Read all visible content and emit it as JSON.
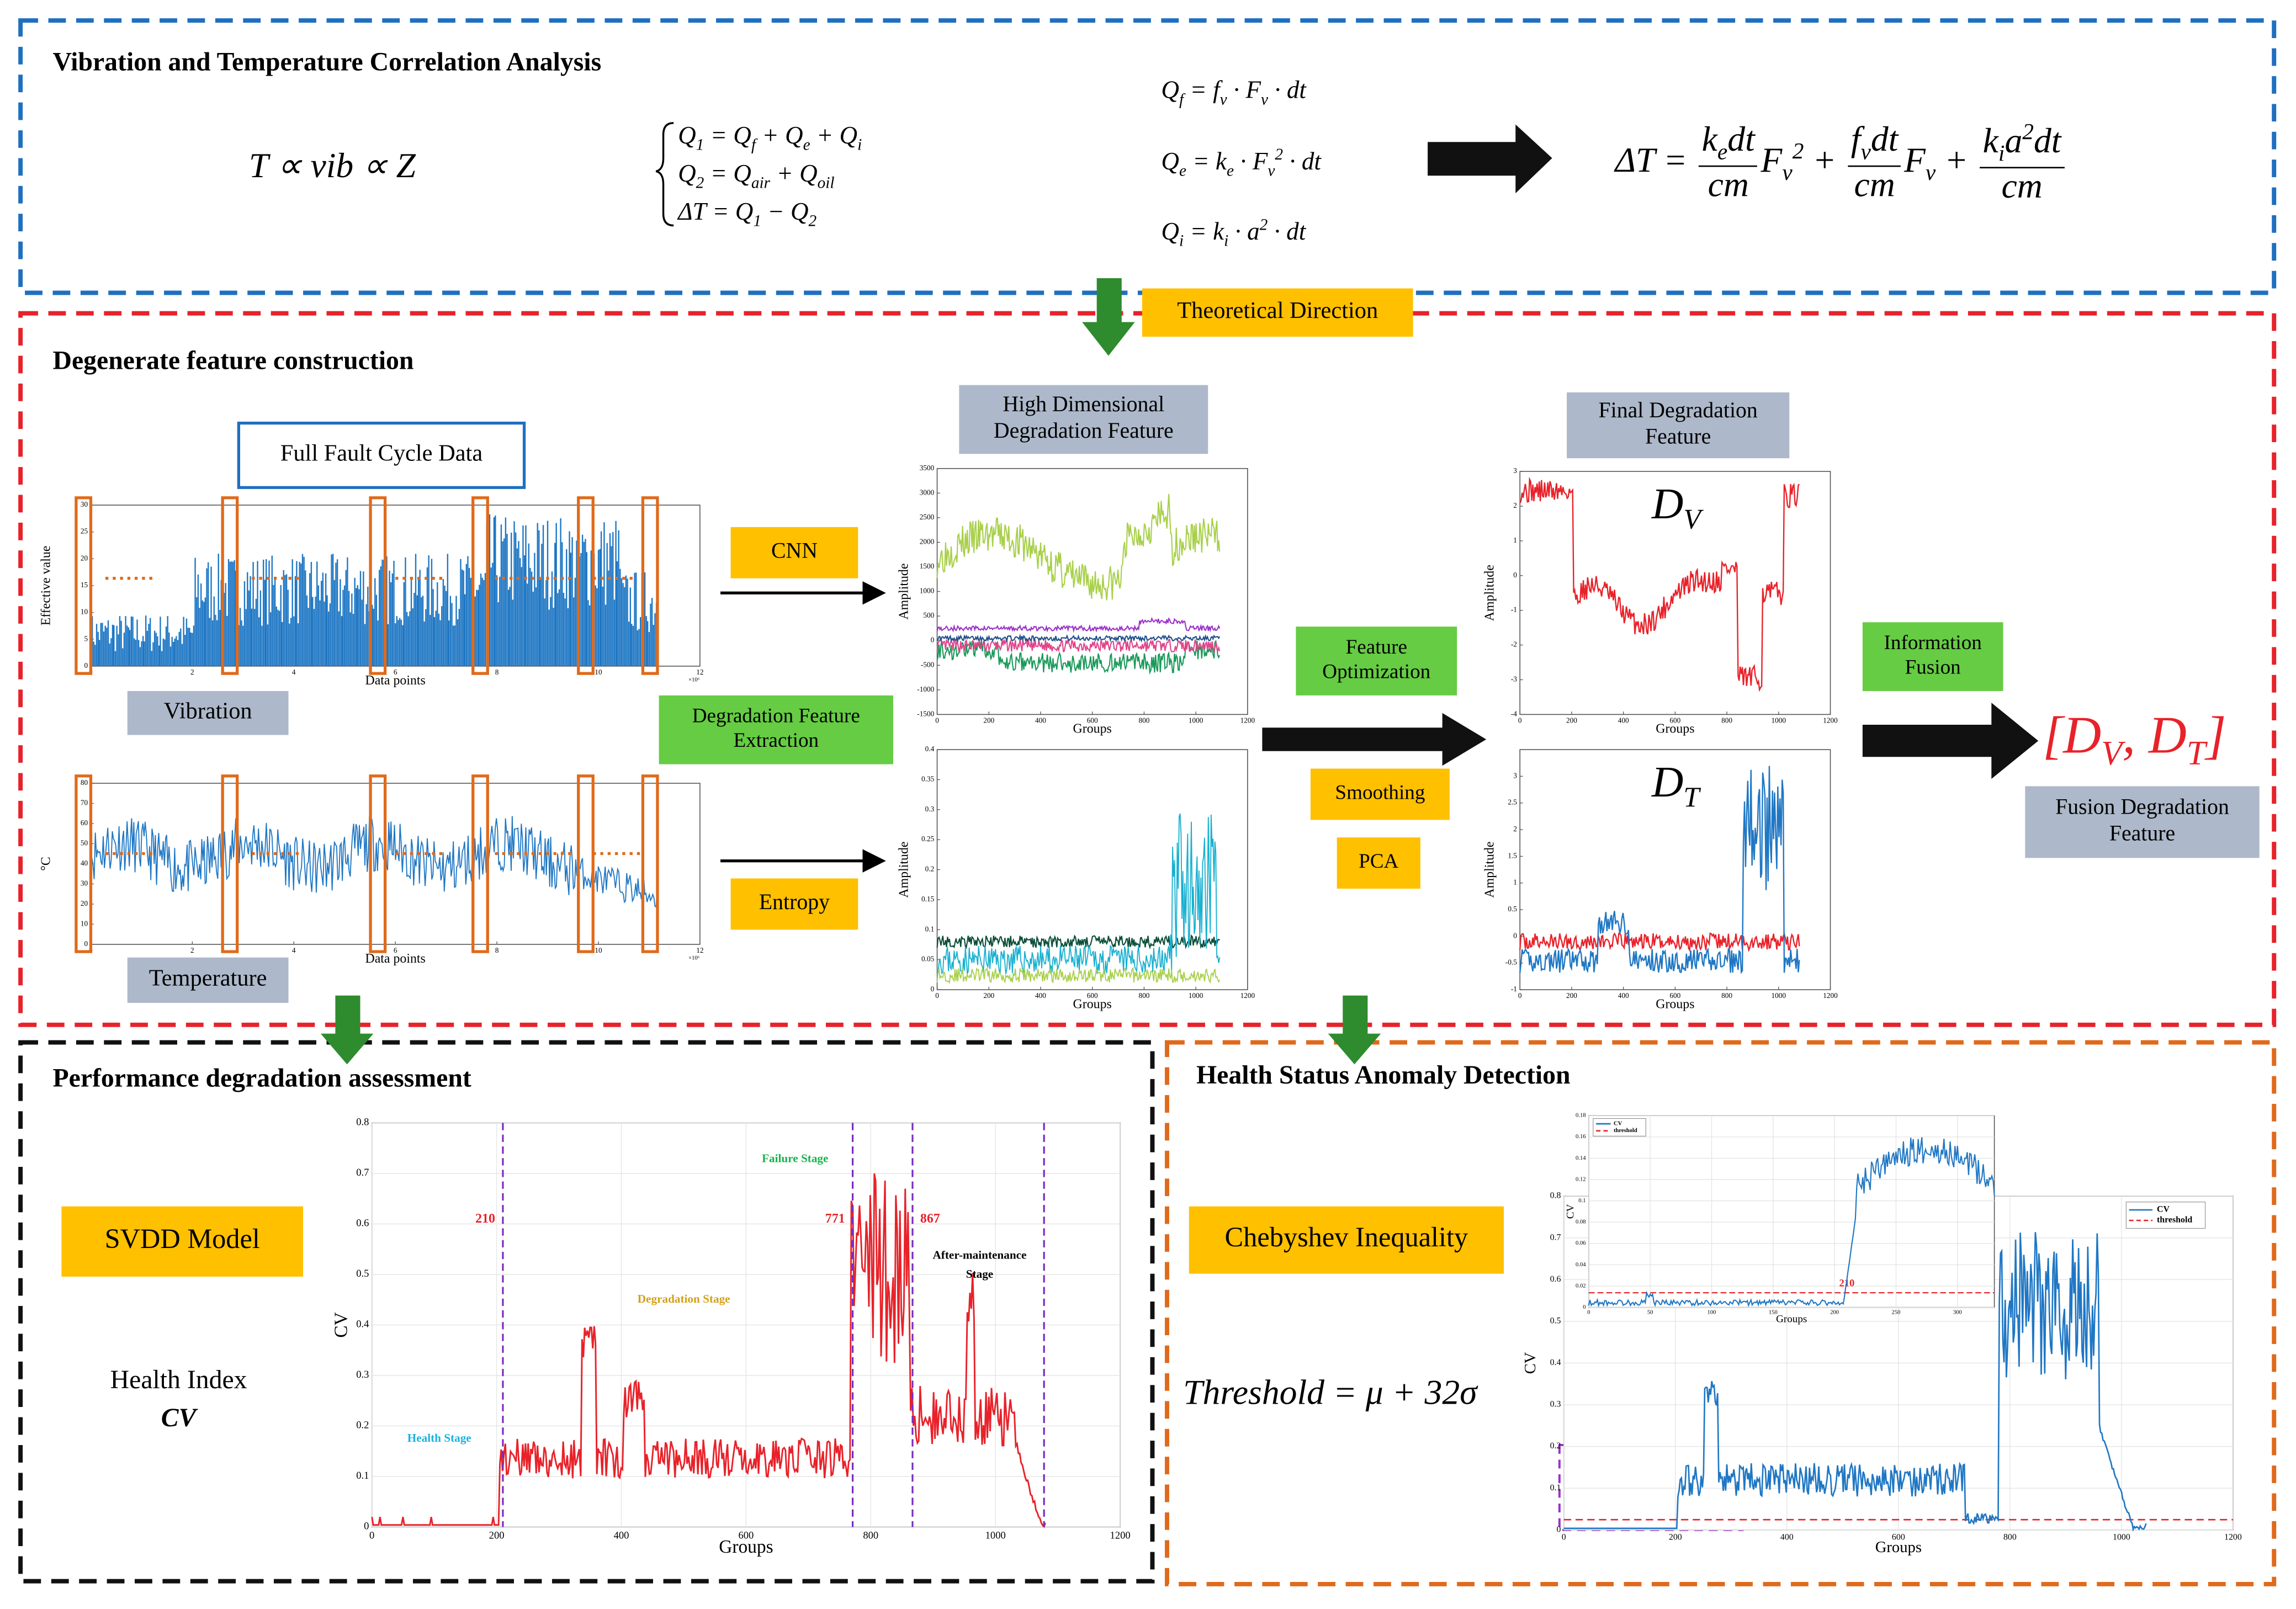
{
  "correlation": {
    "title": "Vibration and Temperature Correlation Analysis",
    "formulas": {
      "proportion": [
        "T ∝ vib ∝ Z"
      ],
      "system": [
        [
          "Q",
          {
            "sub": "1"
          },
          " = Q",
          {
            "sub": "f"
          },
          " + Q",
          {
            "sub": "e"
          },
          " + Q",
          {
            "sub": "i"
          }
        ],
        [
          "Q",
          {
            "sub": "2"
          },
          " = Q",
          {
            "sub": "air"
          },
          " + Q",
          {
            "sub": "oil"
          }
        ],
        [
          "ΔT = Q",
          {
            "sub": "1"
          },
          " − Q",
          {
            "sub": "2"
          }
        ]
      ],
      "heat": [
        [
          "Q",
          {
            "sub": "f"
          },
          " = f",
          {
            "sub": "v"
          },
          " · F",
          {
            "sub": "v"
          },
          " · dt"
        ],
        [
          "Q",
          {
            "sub": "e"
          },
          " = k",
          {
            "sub": "e"
          },
          " · F",
          {
            "sub": "v"
          },
          {
            "sup": "2"
          },
          " · dt"
        ],
        [
          "Q",
          {
            "sub": "i"
          },
          " = k",
          {
            "sub": "i"
          },
          " · a",
          {
            "sup": "2"
          },
          " · dt"
        ]
      ],
      "delta_t": [
        "ΔT = ",
        {
          "frac": [
            [
              "k",
              {
                "sub": "e"
              },
              "dt"
            ],
            [
              "cm"
            ]
          ]
        },
        "F",
        {
          "sub": "v"
        },
        {
          "sup": "2"
        },
        " + ",
        {
          "frac": [
            [
              "f",
              {
                "sub": "v"
              },
              "dt"
            ],
            [
              "cm"
            ]
          ]
        },
        "F",
        {
          "sub": "v"
        },
        " + ",
        {
          "frac": [
            [
              "k",
              {
                "sub": "i"
              },
              "a",
              {
                "sup": "2"
              },
              "dt"
            ],
            [
              "cm"
            ]
          ]
        }
      ]
    }
  },
  "theoretical_direction": "Theoretical Direction",
  "feature_construction": {
    "title": "Degenerate feature construction",
    "full_fault_cycle": "Full Fault Cycle Data",
    "vibration_label": "Vibration",
    "temperature_label": "Temperature",
    "cnn": "CNN",
    "entropy": "Entropy",
    "extraction": [
      "Degradation Feature",
      "Extraction"
    ],
    "high_dimensional": [
      "High Dimensional",
      "Degradation Feature"
    ],
    "optimization": [
      "Feature",
      "Optimization"
    ],
    "smoothing": "Smoothing",
    "pca": "PCA",
    "final_feature": [
      "Final Degradation",
      "Feature"
    ],
    "information_fusion": [
      "Information",
      "Fusion"
    ],
    "fusion_feature": [
      "Fusion Degradation",
      "Feature"
    ],
    "dv": [
      "D",
      {
        "sub": "V"
      }
    ],
    "dt": [
      "D",
      {
        "sub": "T"
      }
    ],
    "fusion_formula": [
      "[D",
      {
        "sub": "V"
      },
      ", D",
      {
        "sub": "T"
      },
      "]"
    ],
    "charts": {
      "vibration": {
        "xlim": [
          0,
          12
        ],
        "xticks": [
          0,
          2,
          4,
          6,
          8,
          10,
          12
        ],
        "ylim": [
          0,
          30
        ],
        "yticks": [
          0,
          5,
          10,
          15,
          20,
          25,
          30
        ],
        "x_label": "Data points",
        "y_label": "Effective value",
        "x_exponent": "×10⁶"
      },
      "temperature": {
        "xlim": [
          0,
          12
        ],
        "xticks": [
          0,
          2,
          4,
          6,
          8,
          10,
          12
        ],
        "ylim": [
          0,
          80
        ],
        "yticks": [
          0,
          10,
          20,
          30,
          40,
          50,
          60,
          70,
          80
        ],
        "x_label": "Data points",
        "y_label": "°C",
        "x_exponent": "×10⁶"
      },
      "hd_cnn": {
        "xlim": [
          0,
          1200
        ],
        "xticks": [
          0,
          200,
          400,
          600,
          800,
          1000,
          1200
        ],
        "ylim": [
          -1500,
          3500
        ],
        "yticks": [
          -1500,
          -1000,
          -500,
          0,
          500,
          1000,
          1500,
          2000,
          2500,
          3000,
          3500
        ],
        "x_label": "Groups",
        "y_label": "Amplitude"
      },
      "hd_entropy": {
        "xlim": [
          0,
          1200
        ],
        "xticks": [
          0,
          200,
          400,
          600,
          800,
          1000,
          1200
        ],
        "ylim": [
          0,
          0.4
        ],
        "yticks": [
          0,
          0.05,
          0.1,
          0.15,
          0.2,
          0.25,
          0.3,
          0.35,
          0.4
        ],
        "x_label": "Groups",
        "y_label": "Amplitude"
      },
      "dv": {
        "xlim": [
          0,
          1200
        ],
        "xticks": [
          0,
          200,
          400,
          600,
          800,
          1000,
          1200
        ],
        "ylim": [
          -4,
          3
        ],
        "yticks": [
          -4,
          -3,
          -2,
          -1,
          0,
          1,
          2,
          3
        ],
        "x_label": "Groups",
        "y_label": "Amplitude"
      },
      "dt": {
        "xlim": [
          0,
          1200
        ],
        "xticks": [
          0,
          200,
          400,
          600,
          800,
          1000,
          1200
        ],
        "ylim": [
          -1,
          3.5
        ],
        "yticks": [
          -1,
          -0.5,
          0,
          0.5,
          1,
          1.5,
          2,
          2.5,
          3
        ],
        "x_label": "Groups",
        "y_label": "Amplitude"
      }
    }
  },
  "assessment": {
    "title": "Performance degradation assessment",
    "model": "SVDD Model",
    "health_index": "Health Index",
    "cv": "CV",
    "chart": {
      "xlim": [
        0,
        1200
      ],
      "xticks": [
        0,
        200,
        400,
        600,
        800,
        1000,
        1200
      ],
      "ylim": [
        0,
        0.8
      ],
      "yticks": [
        0,
        0.1,
        0.2,
        0.3,
        0.4,
        0.5,
        0.6,
        0.7,
        0.8
      ],
      "x_label": "Groups",
      "y_label": "CV",
      "grid": true,
      "markers": [
        210,
        771,
        867
      ],
      "stages": {
        "health": "Health Stage",
        "degradation": "Degradation Stage",
        "failure": "Failure Stage",
        "after": [
          "After-maintenance",
          "Stage"
        ]
      }
    }
  },
  "anomaly": {
    "title": "Health Status Anomaly Detection",
    "method": "Chebyshev Inequality",
    "threshold_formula": [
      "Threshold = μ + 32σ"
    ],
    "chart": {
      "xlim": [
        0,
        1200
      ],
      "xticks": [
        0,
        200,
        400,
        600,
        800,
        1000,
        1200
      ],
      "ylim": [
        0,
        0.8
      ],
      "yticks": [
        0,
        0.1,
        0.2,
        0.3,
        0.4,
        0.5,
        0.6,
        0.7,
        0.8
      ],
      "x_label": "Groups",
      "y_label": "CV",
      "grid": true,
      "legend": [
        "CV",
        "threshold"
      ],
      "inset": {
        "xlim": [
          0,
          330
        ],
        "xticks": [
          0,
          50,
          100,
          150,
          200,
          250,
          300
        ],
        "ylim": [
          0,
          0.18
        ],
        "yticks": [
          0,
          0.02,
          0.04,
          0.06,
          0.08,
          0.1,
          0.12,
          0.14,
          0.16,
          0.18
        ],
        "x_label": "Groups",
        "y_label": "CV",
        "grid": true,
        "legend": [
          "CV",
          "threshold"
        ],
        "marker": 210
      }
    }
  }
}
